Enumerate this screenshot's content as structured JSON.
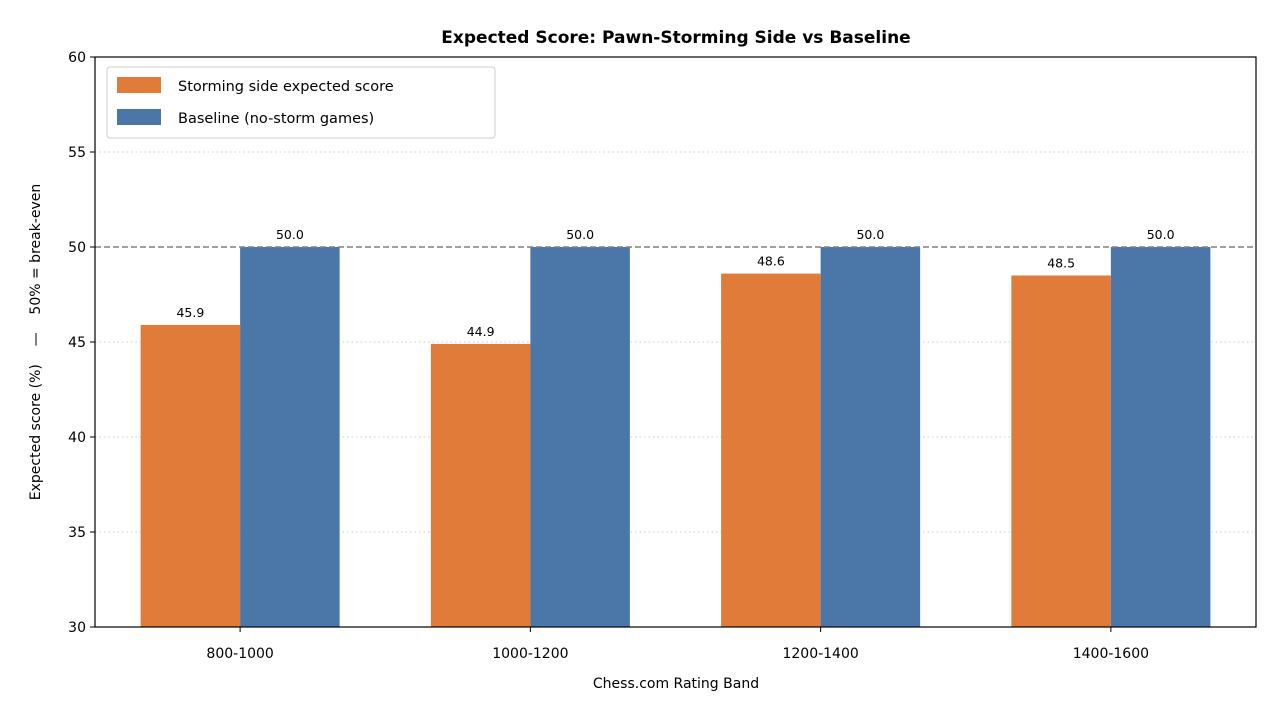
{
  "chart_data": {
    "type": "bar",
    "title": "Expected Score: Pawn-Storming Side vs Baseline",
    "xlabel": "Chess.com Rating Band",
    "ylabel": "Expected score (%)    —    50% = break-even",
    "categories": [
      "800-1000",
      "1000-1200",
      "1200-1400",
      "1400-1600"
    ],
    "series": [
      {
        "name": "Storming side expected score",
        "color": "#e07b39",
        "values": [
          45.9,
          44.9,
          48.6,
          48.5
        ]
      },
      {
        "name": "Baseline (no-storm games)",
        "color": "#4a76a8",
        "values": [
          50.0,
          50.0,
          50.0,
          50.0
        ]
      }
    ],
    "data_labels": [
      [
        "45.9",
        "44.9",
        "48.6",
        "48.5"
      ],
      [
        "50.0",
        "50.0",
        "50.0",
        "50.0"
      ]
    ],
    "ylim": [
      30,
      60
    ],
    "yticks": [
      30,
      35,
      40,
      45,
      50,
      55,
      60
    ],
    "reference_line": {
      "value": 50,
      "style": "dashed",
      "color": "#808080"
    },
    "grid": "horizontal dotted",
    "legend_position": "top-left"
  }
}
